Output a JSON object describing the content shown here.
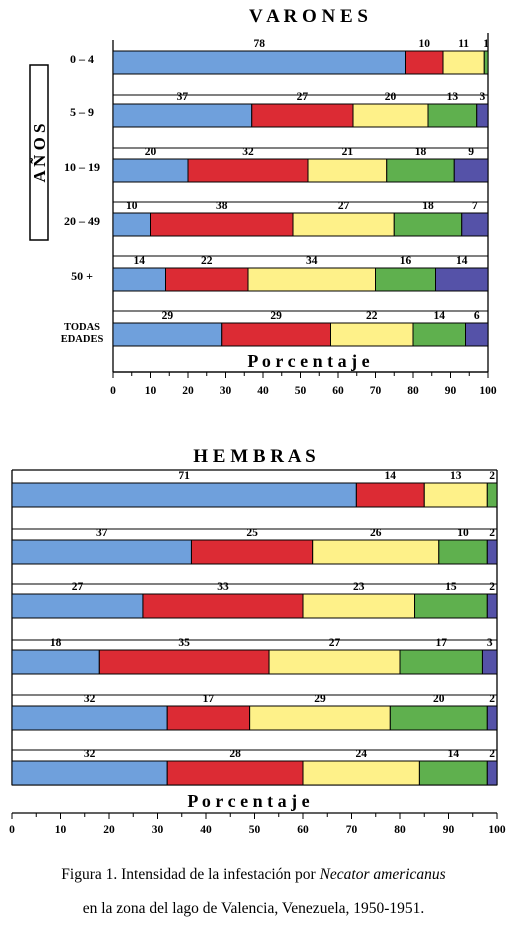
{
  "colors": {
    "series": [
      "#6fa0dc",
      "#dc2b34",
      "#fef189",
      "#5fb04e",
      "#5552a8"
    ]
  },
  "chart_data": [
    {
      "type": "bar",
      "orientation": "horizontal",
      "stacked": true,
      "title": "V A R O N E S",
      "side_label": "A Ñ O S",
      "xlabel": "P o r c e n t a j e",
      "xlim": [
        0,
        100
      ],
      "xticks": [
        "0",
        "10",
        "20",
        "30",
        "40",
        "50",
        "60",
        "70",
        "80",
        "90",
        "100"
      ],
      "categories": [
        "0 – 4",
        "5 – 9",
        "10 – 19",
        "20 – 49",
        "50 +",
        "TODAS EDADES"
      ],
      "category_lines": [
        [
          "0 – 4"
        ],
        [
          "5 – 9"
        ],
        [
          "10 – 19"
        ],
        [
          "20 – 49"
        ],
        [
          "50 +"
        ],
        [
          "TODAS",
          "EDADES"
        ]
      ],
      "rows": [
        [
          78,
          10,
          11,
          1,
          0
        ],
        [
          37,
          27,
          20,
          13,
          3
        ],
        [
          20,
          32,
          21,
          18,
          9
        ],
        [
          10,
          38,
          27,
          18,
          7
        ],
        [
          14,
          22,
          34,
          16,
          14
        ],
        [
          29,
          29,
          22,
          14,
          6
        ]
      ]
    },
    {
      "type": "bar",
      "orientation": "horizontal",
      "stacked": true,
      "title": "H E M B R A S",
      "xlabel": "P o r c e n t a j e",
      "xlim": [
        0,
        100
      ],
      "xticks": [
        "0",
        "10",
        "20",
        "30",
        "40",
        "50",
        "60",
        "70",
        "80",
        "90",
        "100"
      ],
      "rows": [
        [
          71,
          14,
          13,
          2,
          0
        ],
        [
          37,
          25,
          26,
          10,
          2
        ],
        [
          27,
          33,
          23,
          15,
          2
        ],
        [
          18,
          35,
          27,
          17,
          3
        ],
        [
          32,
          17,
          29,
          20,
          2
        ],
        [
          32,
          28,
          24,
          14,
          2
        ]
      ]
    }
  ],
  "caption": {
    "line1_prefix": "Figura 1.  Intensidad de la infestación por ",
    "line1_italic": "Necator americanus",
    "line2": "en la zona del lago de Valencia, Venezuela, 1950-1951."
  }
}
